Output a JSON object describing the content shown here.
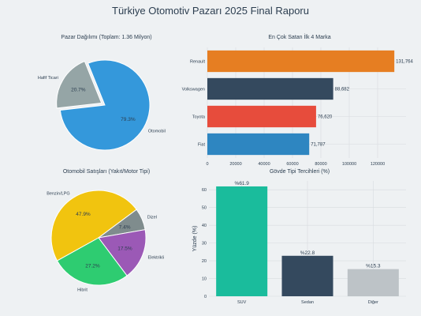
{
  "page_title": "Türkiye Otomotiv Pazarı 2025 Final Raporu",
  "colors": {
    "background": "#eef1f3",
    "blue": "#3498db",
    "gray": "#95a5a6",
    "orange": "#e67e22",
    "navy": "#34495e",
    "red": "#e74c3c",
    "steel_blue": "#2e86c1",
    "yellow": "#f1c40f",
    "green": "#2ecc71",
    "purple": "#9b59b6",
    "dark_gray": "#7f8c8d",
    "teal": "#1abc9c",
    "light_gray": "#bdc3c7"
  },
  "chart_data": [
    {
      "id": "market",
      "type": "pie",
      "title": "Pazar Dağılımı (Toplam: 1.36 Milyon)",
      "slices": [
        {
          "label": "Otomobil",
          "percent": 79.3,
          "pct_label": "79.3%",
          "color": "#3498db"
        },
        {
          "label": "Hafif Ticari",
          "percent": 20.7,
          "pct_label": "20.7%",
          "color": "#95a5a6"
        }
      ]
    },
    {
      "id": "brands",
      "type": "bar",
      "orientation": "horizontal",
      "title": "En Çok Satan İlk 4 Marka",
      "categories": [
        "Renault",
        "Volkswagen",
        "Toyota",
        "Fiat"
      ],
      "values": [
        131764,
        88682,
        76620,
        71787
      ],
      "value_labels": [
        "131,764",
        "88,682",
        "76,620",
        "71,787"
      ],
      "colors": [
        "#e67e22",
        "#34495e",
        "#e74c3c",
        "#2e86c1"
      ],
      "xlim": [
        0,
        140000
      ],
      "xticks": [
        0,
        20000,
        40000,
        60000,
        80000,
        100000,
        120000
      ],
      "grid": true
    },
    {
      "id": "fuel",
      "type": "pie",
      "title": "Otomobil Satışları (Yakıt/Motor Tipi)",
      "slices": [
        {
          "label": "Benzin/LPG",
          "percent": 47.9,
          "pct_label": "47.9%",
          "color": "#f1c40f"
        },
        {
          "label": "Dizel",
          "percent": 7.4,
          "pct_label": "7.4%",
          "color": "#7f8c8d"
        },
        {
          "label": "Elektrikli",
          "percent": 17.5,
          "pct_label": "17.5%",
          "color": "#9b59b6"
        },
        {
          "label": "Hibrit",
          "percent": 27.2,
          "pct_label": "27.2%",
          "color": "#2ecc71"
        }
      ]
    },
    {
      "id": "body",
      "type": "bar",
      "title": "Gövde Tipi Tercihleri (%)",
      "ylabel": "Yüzde (%)",
      "categories": [
        "SUV",
        "Sedan",
        "Diğer"
      ],
      "values": [
        61.9,
        22.8,
        15.3
      ],
      "value_labels": [
        "%61.9",
        "%22.8",
        "%15.3"
      ],
      "colors": [
        "#1abc9c",
        "#34495e",
        "#bdc3c7"
      ],
      "ylim": [
        0,
        65
      ],
      "yticks": [
        0,
        10,
        20,
        30,
        40,
        50,
        60
      ],
      "grid": true
    }
  ]
}
